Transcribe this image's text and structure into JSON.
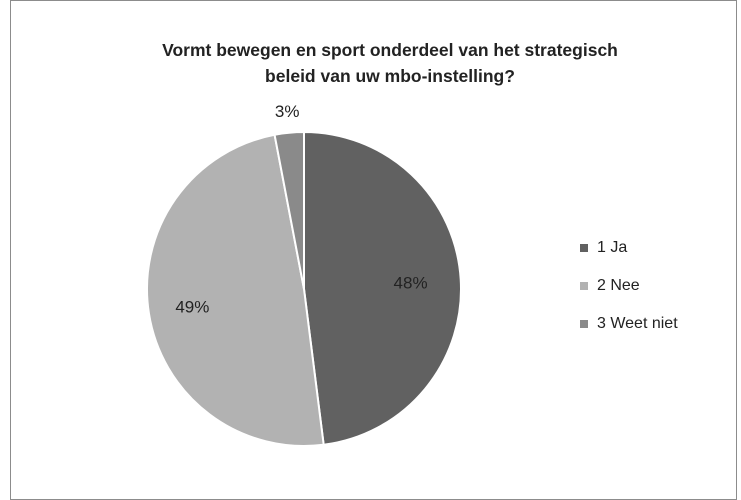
{
  "chart_data": {
    "type": "pie",
    "title_lines": [
      "Vormt bewegen en sport onderdeel van het strategisch",
      "beleid van uw mbo-instelling?"
    ],
    "categories": [
      "1  Ja",
      "2  Nee",
      "3  Weet niet"
    ],
    "values": [
      48,
      49,
      3
    ],
    "labels": [
      "48%",
      "49%",
      "3%"
    ],
    "colors": [
      "#616161",
      "#b2b2b2",
      "#8a8a8a"
    ],
    "legend_position": "right"
  }
}
